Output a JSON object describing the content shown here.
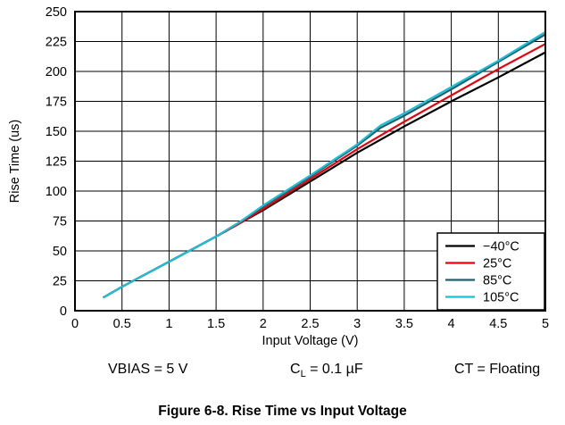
{
  "chart_data": {
    "type": "line",
    "xlabel": "Input Voltage (V)",
    "ylabel": "Rise Time (us)",
    "xlim": [
      0,
      5
    ],
    "ylim": [
      0,
      250
    ],
    "x_ticks": [
      0,
      0.5,
      1,
      1.5,
      2,
      2.5,
      3,
      3.5,
      4,
      4.5,
      5
    ],
    "x_tick_labels": [
      "0",
      "0.5",
      "1",
      "1.5",
      "2",
      "2.5",
      "3",
      "3.5",
      "4",
      "4.5",
      "5"
    ],
    "y_ticks": [
      0,
      25,
      50,
      75,
      100,
      125,
      150,
      175,
      200,
      225,
      250
    ],
    "y_tick_labels": [
      "0",
      "25",
      "50",
      "75",
      "100",
      "125",
      "150",
      "175",
      "200",
      "225",
      "250"
    ],
    "grid": true,
    "legend_position": "bottom-right",
    "series": [
      {
        "name": "−40°C",
        "color": "#000000",
        "x": [
          0.3,
          0.5,
          1,
          1.5,
          1.75,
          2,
          2.5,
          3,
          3.5,
          4,
          4.5,
          5
        ],
        "y": [
          11,
          20,
          41,
          62,
          73,
          84,
          108,
          132,
          154,
          175,
          195,
          216
        ]
      },
      {
        "name": "25°C",
        "color": "#e8000b",
        "x": [
          0.3,
          0.5,
          1,
          1.5,
          1.75,
          2,
          2.5,
          3,
          3.5,
          4,
          4.5,
          5
        ],
        "y": [
          11,
          20,
          41,
          62,
          73,
          85,
          110,
          135,
          158,
          180,
          202,
          223
        ]
      },
      {
        "name": "85°C",
        "color": "#1f5f6e",
        "x": [
          0.3,
          0.5,
          1,
          1.5,
          1.75,
          2,
          2.5,
          3,
          3.25,
          3.5,
          4,
          4.5,
          5
        ],
        "y": [
          11,
          20,
          41,
          62,
          74,
          87,
          112,
          138,
          153,
          163,
          185,
          208,
          231
        ]
      },
      {
        "name": "105°C",
        "color": "#1bbfd6",
        "x": [
          0.3,
          0.5,
          1,
          1.5,
          1.75,
          2,
          2.5,
          3,
          3.25,
          3.5,
          4,
          4.5,
          5
        ],
        "y": [
          11,
          20,
          41,
          62,
          74,
          88,
          113,
          139,
          155,
          165,
          187,
          209,
          233
        ]
      }
    ]
  },
  "conditions": {
    "vbias": "VBIAS = 5 V",
    "cl_prefix": "C",
    "cl_sub": "L",
    "cl_suffix": " = 0.1 µF",
    "ct": "CT = Floating"
  },
  "caption": "Figure 6-8. Rise Time vs Input Voltage"
}
